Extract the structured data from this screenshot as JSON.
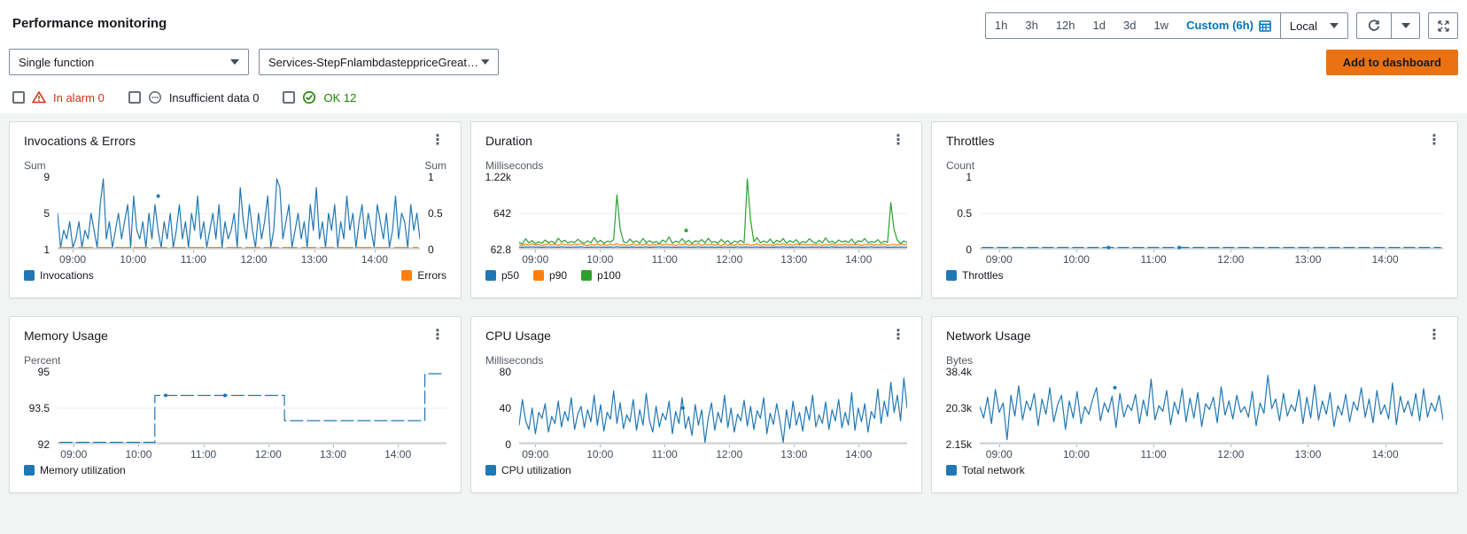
{
  "header": {
    "title": "Performance monitoring",
    "add_to_dashboard": "Add to dashboard"
  },
  "controls": {
    "time_ranges": [
      "1h",
      "3h",
      "12h",
      "1d",
      "3d",
      "1w"
    ],
    "custom_label": "Custom (6h)",
    "timezone": "Local"
  },
  "selectors": {
    "scope": "Single function",
    "function_name": "Services-StepFnlambdasteppriceGreaterT..."
  },
  "filters": [
    {
      "label": "In alarm 0",
      "color": "#d13212"
    },
    {
      "label": "Insufficient data 0",
      "color": "#16191f"
    },
    {
      "label": "OK 12",
      "color": "#1d8102"
    }
  ],
  "colors": {
    "accent_blue": "#0073bb",
    "button_orange": "#ec7211",
    "alarm_red": "#d13212",
    "ok_green": "#1d8102",
    "series_blue": "#1f77b4",
    "series_orange": "#ff7f0e",
    "series_green": "#2ca02c"
  },
  "chart_data": [
    {
      "type": "line",
      "title": "Invocations & Errors",
      "unit_left": "Sum",
      "unit_right": "Sum",
      "yticks_left": [
        "9",
        "5",
        "1"
      ],
      "yticks_right": [
        "1",
        "0.5",
        "0"
      ],
      "xticks": [
        "09:00",
        "10:00",
        "11:00",
        "12:00",
        "13:00",
        "14:00"
      ],
      "xtick_minutes": [
        15,
        75,
        135,
        195,
        255,
        315
      ],
      "x_range_minutes": [
        0,
        360
      ],
      "series": [
        {
          "name": "Invocations",
          "color": "#1f77b4",
          "ylim": [
            1,
            9
          ],
          "values": [
            5,
            1,
            3,
            2,
            4,
            1,
            2,
            4,
            1,
            3,
            2,
            5,
            3,
            1,
            6,
            9,
            2,
            4,
            1,
            3,
            5,
            2,
            4,
            6,
            1,
            7,
            3,
            2,
            4,
            1,
            5,
            2,
            6,
            3,
            1,
            4,
            2,
            5,
            1,
            3,
            6,
            2,
            4,
            1,
            5,
            3,
            7,
            2,
            4,
            1,
            3,
            5,
            2,
            6,
            1,
            4,
            2,
            3,
            5,
            1,
            8,
            4,
            2,
            6,
            3,
            1,
            5,
            2,
            4,
            7,
            1,
            3,
            9,
            8,
            2,
            4,
            6,
            1,
            3,
            5,
            2,
            4,
            1,
            6,
            3,
            8,
            2,
            4,
            1,
            5,
            3,
            6,
            1,
            4,
            2,
            7,
            3,
            5,
            1,
            4,
            6,
            2,
            5,
            3,
            1,
            6,
            4,
            2,
            5,
            1,
            3,
            7,
            2,
            5,
            4,
            1,
            6,
            3,
            5,
            2
          ],
          "dots": [
            [
              100,
              7
            ]
          ]
        },
        {
          "name": "Errors",
          "color": "#ff7f0e",
          "ylim": [
            0,
            1
          ],
          "constant": 0,
          "dash": "16 5"
        }
      ],
      "legend": [
        {
          "label": "Invocations",
          "color": "#1f77b4"
        },
        {
          "label": "Errors",
          "color": "#ff7f0e",
          "align": "right"
        }
      ]
    },
    {
      "type": "line",
      "title": "Duration",
      "unit_left": "Milliseconds",
      "unit_right": "",
      "yticks_left": [
        "1.22k",
        "642",
        "62.8"
      ],
      "yticks_right": [],
      "xticks": [
        "09:00",
        "10:00",
        "11:00",
        "12:00",
        "13:00",
        "14:00"
      ],
      "xtick_minutes": [
        15,
        75,
        135,
        195,
        255,
        315
      ],
      "x_range_minutes": [
        0,
        360
      ],
      "series": [
        {
          "name": "p50",
          "color": "#1f77b4",
          "ylim": [
            62.8,
            1220
          ],
          "values": [
            70,
            65,
            72,
            68,
            75,
            66,
            70,
            64,
            69,
            73,
            67,
            71,
            65,
            74,
            68,
            70,
            66,
            72,
            69,
            75,
            68,
            64,
            71,
            67,
            73,
            66,
            70,
            65,
            72,
            68,
            74,
            67,
            70,
            64,
            69,
            72,
            66,
            71,
            68,
            73,
            65,
            70,
            67,
            74,
            66,
            72,
            68,
            70,
            64,
            71,
            69,
            73,
            66,
            70,
            67,
            75,
            65,
            71,
            68,
            72,
            66,
            70,
            64,
            73,
            67,
            71,
            65,
            74,
            68,
            70,
            72,
            66,
            69,
            73,
            65,
            71,
            67,
            70,
            64,
            72,
            68,
            74,
            66,
            70,
            65,
            73,
            67,
            71,
            68,
            69,
            70,
            66,
            72,
            64,
            71,
            67,
            74,
            65,
            70,
            68,
            73,
            66,
            70,
            67,
            72,
            65,
            71,
            68,
            74,
            66,
            70,
            67,
            73,
            65,
            69,
            71,
            66,
            72,
            68,
            70
          ]
        },
        {
          "name": "p90",
          "color": "#ff7f0e",
          "ylim": [
            62.8,
            1220
          ],
          "values": [
            110,
            95,
            120,
            100,
            130,
            98,
            115,
            92,
            108,
            125,
            102,
            118,
            96,
            128,
            105,
            112,
            99,
            122,
            107,
            130,
            104,
            94,
            119,
            101,
            126,
            97,
            113,
            95,
            121,
            106,
            127,
            100,
            114,
            93,
            109,
            124,
            98,
            117,
            103,
            128,
            96,
            112,
            101,
            129,
            99,
            123,
            105,
            111,
            94,
            118,
            107,
            125,
            97,
            115,
            102,
            131,
            95,
            119,
            104,
            122,
            98,
            113,
            92,
            126,
            100,
            116,
            96,
            128,
            103,
            110,
            121,
            97,
            108,
            127,
            94,
            118,
            101,
            112,
            93,
            123,
            105,
            129,
            98,
            114,
            96,
            125,
            102,
            117,
            106,
            109,
            111,
            99,
            120,
            93,
            116,
            103,
            127,
            95,
            112,
            104,
            124,
            97,
            115,
            101,
            119,
            94,
            118,
            105,
            126,
            98,
            113,
            102,
            122,
            96,
            110,
            117,
            99,
            121,
            107,
            112
          ]
        },
        {
          "name": "p100",
          "color": "#2ca02c",
          "ylim": [
            62.8,
            1220
          ],
          "values": [
            150,
            120,
            210,
            140,
            180,
            125,
            160,
            135,
            190,
            145,
            170,
            130,
            220,
            155,
            185,
            140,
            165,
            150,
            200,
            160,
            135,
            175,
            145,
            230,
            150,
            185,
            130,
            170,
            155,
            195,
            950,
            380,
            160,
            140,
            205,
            150,
            175,
            135,
            215,
            145,
            180,
            140,
            165,
            125,
            190,
            155,
            240,
            135,
            170,
            150,
            210,
            145,
            185,
            130,
            175,
            160,
            195,
            140,
            220,
            150,
            165,
            135,
            200,
            145,
            180,
            125,
            170,
            155,
            185,
            140,
            1220,
            520,
            160,
            230,
            140,
            175,
            145,
            205,
            130,
            185,
            155,
            215,
            135,
            180,
            150,
            195,
            125,
            165,
            145,
            210,
            160,
            130,
            185,
            140,
            225,
            150,
            170,
            135,
            190,
            155,
            175,
            145,
            205,
            125,
            180,
            160,
            215,
            140,
            165,
            150,
            195,
            135,
            170,
            150,
            820,
            360,
            185,
            130,
            175,
            145
          ],
          "dots": [
            [
              155,
              350
            ]
          ]
        }
      ],
      "legend": [
        {
          "label": "p50",
          "color": "#1f77b4"
        },
        {
          "label": "p90",
          "color": "#ff7f0e"
        },
        {
          "label": "p100",
          "color": "#2ca02c"
        }
      ]
    },
    {
      "type": "line",
      "title": "Throttles",
      "unit_left": "Count",
      "unit_right": "",
      "yticks_left": [
        "1",
        "0.5",
        "0"
      ],
      "yticks_right": [],
      "xticks": [
        "09:00",
        "10:00",
        "11:00",
        "12:00",
        "13:00",
        "14:00"
      ],
      "xtick_minutes": [
        15,
        75,
        135,
        195,
        255,
        315
      ],
      "x_range_minutes": [
        0,
        360
      ],
      "series": [
        {
          "name": "Throttles",
          "color": "#1f77b4",
          "ylim": [
            0,
            1
          ],
          "constant": 0,
          "dash": "12 5",
          "dots": [
            [
              100,
              0
            ],
            [
              155,
              0
            ]
          ]
        }
      ],
      "legend": [
        {
          "label": "Throttles",
          "color": "#1f77b4"
        }
      ]
    },
    {
      "type": "line",
      "title": "Memory Usage",
      "unit_left": "Percent",
      "unit_right": "",
      "yticks_left": [
        "95",
        "93.5",
        "92"
      ],
      "yticks_right": [],
      "xticks": [
        "09:00",
        "10:00",
        "11:00",
        "12:00",
        "13:00",
        "14:00"
      ],
      "xtick_minutes": [
        15,
        75,
        135,
        195,
        255,
        315
      ],
      "x_range_minutes": [
        0,
        360
      ],
      "series": [
        {
          "name": "Memory utilization",
          "color": "#1f77b4",
          "ylim": [
            92,
            95
          ],
          "dash": "14 5",
          "step": [
            [
              2,
              92
            ],
            [
              90,
              92
            ],
            [
              90,
              94.05
            ],
            [
              210,
              94.05
            ],
            [
              210,
              92.95
            ],
            [
              340,
              92.95
            ],
            [
              340,
              95
            ],
            [
              357,
              95
            ]
          ],
          "dots": [
            [
              100,
              94.05
            ],
            [
              155,
              94.05
            ]
          ]
        }
      ],
      "legend": [
        {
          "label": "Memory utilization",
          "color": "#1f77b4"
        }
      ]
    },
    {
      "type": "line",
      "title": "CPU Usage",
      "unit_left": "Milliseconds",
      "unit_right": "",
      "yticks_left": [
        "80",
        "40",
        "0"
      ],
      "yticks_right": [],
      "xticks": [
        "09:00",
        "10:00",
        "11:00",
        "12:00",
        "13:00",
        "14:00"
      ],
      "xtick_minutes": [
        15,
        75,
        135,
        195,
        255,
        315
      ],
      "x_range_minutes": [
        0,
        360
      ],
      "series": [
        {
          "name": "CPU utilization",
          "color": "#1f77b4",
          "ylim": [
            0,
            80
          ],
          "values": [
            20,
            50,
            25,
            15,
            40,
            10,
            35,
            28,
            45,
            12,
            30,
            22,
            48,
            18,
            36,
            25,
            52,
            15,
            33,
            42,
            17,
            38,
            24,
            55,
            20,
            44,
            13,
            35,
            27,
            60,
            22,
            46,
            16,
            32,
            24,
            50,
            14,
            38,
            20,
            57,
            25,
            12,
            42,
            18,
            34,
            26,
            48,
            10,
            36,
            22,
            52,
            16,
            30,
            8,
            44,
            20,
            38,
            0,
            28,
            46,
            14,
            35,
            23,
            55,
            17,
            40,
            12,
            33,
            25,
            49,
            19,
            42,
            15,
            37,
            28,
            52,
            10,
            34,
            21,
            45,
            24,
            0,
            38,
            16,
            48,
            20,
            35,
            13,
            42,
            26,
            55,
            18,
            32,
            22,
            47,
            15,
            38,
            25,
            50,
            17,
            35,
            20,
            58,
            14,
            40,
            24,
            45,
            12,
            36,
            28,
            62,
            22,
            48,
            30,
            70,
            35,
            55,
            25,
            75,
            40
          ],
          "dots": [
            [
              152,
              40
            ]
          ]
        }
      ],
      "legend": [
        {
          "label": "CPU utilization",
          "color": "#1f77b4"
        }
      ]
    },
    {
      "type": "line",
      "title": "Network Usage",
      "unit_left": "Bytes",
      "unit_right": "",
      "yticks_left": [
        "38.4k",
        "20.3k",
        "2.15k"
      ],
      "yticks_right": [],
      "xticks": [
        "09:00",
        "10:00",
        "11:00",
        "12:00",
        "13:00",
        "14:00"
      ],
      "xtick_minutes": [
        15,
        75,
        135,
        195,
        255,
        315
      ],
      "x_range_minutes": [
        0,
        360
      ],
      "series": [
        {
          "name": "Total network",
          "color": "#1f77b4",
          "ylim": [
            2150,
            38400
          ],
          "values": [
            21000,
            15000,
            26000,
            12000,
            30000,
            18000,
            23000,
            3500,
            27000,
            16000,
            32000,
            14000,
            24000,
            19000,
            28000,
            11000,
            25000,
            17000,
            31000,
            13000,
            22000,
            27000,
            9000,
            24000,
            15000,
            29000,
            12000,
            21000,
            17000,
            25000,
            31000,
            13500,
            23000,
            18000,
            26500,
            10000,
            28000,
            15500,
            22000,
            19000,
            27500,
            12000,
            24500,
            16000,
            35500,
            14000,
            21500,
            18500,
            29500,
            11500,
            23500,
            17000,
            30500,
            13000,
            25500,
            15000,
            28500,
            10500,
            22500,
            19500,
            26000,
            12500,
            31500,
            16500,
            24000,
            14500,
            27000,
            18000,
            21000,
            15500,
            29000,
            11000,
            23000,
            17500,
            37500,
            20000,
            25000,
            13500,
            28000,
            16000,
            22000,
            18500,
            30000,
            12000,
            26000,
            15000,
            32500,
            14000,
            24000,
            17000,
            28500,
            10500,
            21500,
            16500,
            27500,
            13000,
            23500,
            19000,
            31000,
            15500,
            25000,
            12500,
            29500,
            17000,
            22000,
            14500,
            33500,
            11500,
            26500,
            18000,
            24000,
            16000,
            28000,
            13500,
            30500,
            15500,
            23000,
            18500,
            27000,
            14000
          ],
          "dots": [
            [
              105,
              31000
            ]
          ]
        }
      ],
      "legend": [
        {
          "label": "Total network",
          "color": "#1f77b4"
        }
      ]
    }
  ]
}
